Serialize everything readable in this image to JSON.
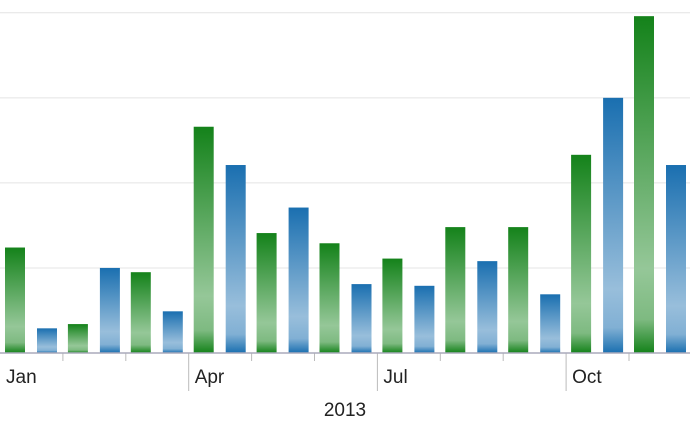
{
  "chart_data": {
    "type": "bar",
    "categories": [
      "Jan",
      null,
      null,
      "Apr",
      null,
      null,
      "Jul",
      null,
      null,
      "Oct",
      null
    ],
    "xlabel": "2013",
    "series": [
      {
        "color": "#14821a",
        "values": [
          1.24,
          0.34,
          0.95,
          2.66,
          1.41,
          1.29,
          1.11,
          1.48,
          1.48,
          2.33,
          3.96
        ]
      },
      {
        "color": "#1a6fb0",
        "values": [
          0.29,
          1.0,
          0.49,
          2.21,
          1.71,
          0.81,
          0.79,
          1.08,
          0.69,
          3.0,
          2.21
        ]
      }
    ],
    "ylim": [
      0,
      4.15
    ],
    "yticks": [
      0,
      1,
      2,
      3,
      4
    ],
    "grid": true
  }
}
